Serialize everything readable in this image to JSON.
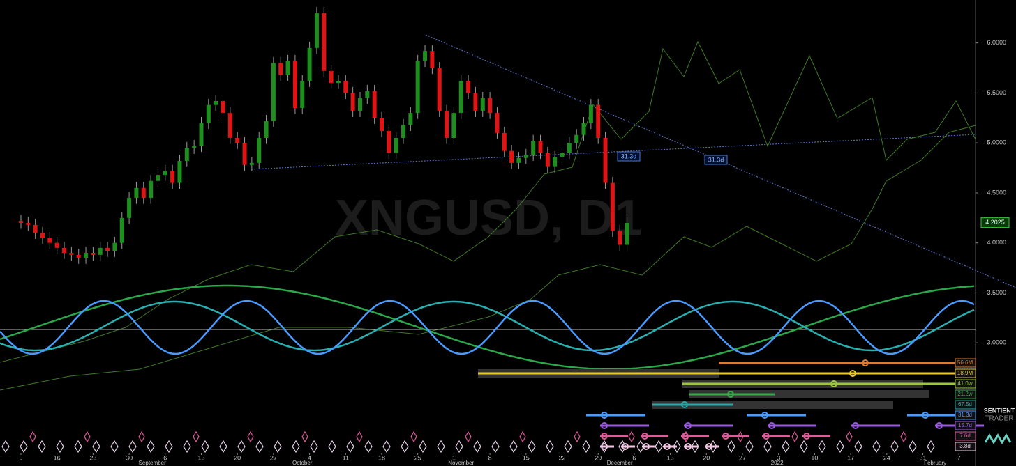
{
  "chart_data": {
    "type": "candlestick",
    "watermark": "XNGUSD, D1",
    "open": [
      4.22,
      4.2,
      4.18,
      4.1,
      4.05,
      4.0,
      3.95,
      3.9,
      3.88,
      3.85,
      3.9,
      3.88,
      3.95,
      3.92,
      4.0,
      4.25,
      4.45,
      4.55,
      4.45,
      4.62,
      4.68,
      4.72,
      4.6,
      4.82,
      4.95,
      4.97,
      5.2,
      5.38,
      5.42,
      5.3,
      5.05,
      5.0,
      4.78,
      4.8,
      5.05,
      5.22,
      5.8,
      5.68,
      5.82,
      5.35,
      5.62,
      5.95,
      6.3,
      5.72,
      5.6,
      5.62,
      5.5,
      5.32,
      5.45,
      5.52,
      5.25,
      5.12,
      4.9,
      5.05,
      5.18,
      5.3,
      5.82,
      5.92,
      5.75,
      5.32,
      5.05,
      5.3,
      5.62,
      5.5,
      5.32,
      5.45,
      5.3,
      5.1,
      4.92,
      4.8,
      4.85,
      4.88,
      5.02,
      4.9,
      4.76,
      4.86,
      4.9,
      5.0,
      5.08,
      5.2,
      5.38,
      5.05,
      4.6,
      4.12,
      3.98
    ],
    "high": [
      4.28,
      4.26,
      4.24,
      4.16,
      4.11,
      4.06,
      4.01,
      3.96,
      3.94,
      3.96,
      3.96,
      4.01,
      4.01,
      4.06,
      4.31,
      4.51,
      4.61,
      4.61,
      4.68,
      4.74,
      4.78,
      4.78,
      4.88,
      5.01,
      5.03,
      5.26,
      5.44,
      5.48,
      5.48,
      5.36,
      5.11,
      5.06,
      4.86,
      5.11,
      5.28,
      5.86,
      5.86,
      5.88,
      5.88,
      5.68,
      6.01,
      6.36,
      6.36,
      5.78,
      5.68,
      5.68,
      5.56,
      5.51,
      5.58,
      5.58,
      5.31,
      5.18,
      5.11,
      5.24,
      5.36,
      5.88,
      5.98,
      5.98,
      5.81,
      5.38,
      5.36,
      5.68,
      5.68,
      5.56,
      5.51,
      5.51,
      5.36,
      5.16,
      4.98,
      4.91,
      4.94,
      5.08,
      5.08,
      4.96,
      4.92,
      4.96,
      5.06,
      5.14,
      5.26,
      5.44,
      5.44,
      5.11,
      4.66,
      4.18,
      4.26
    ],
    "low": [
      4.14,
      4.12,
      4.04,
      3.99,
      3.94,
      3.89,
      3.84,
      3.82,
      3.79,
      3.79,
      3.82,
      3.82,
      3.86,
      3.86,
      3.94,
      4.19,
      4.39,
      4.39,
      4.39,
      4.56,
      4.62,
      4.54,
      4.54,
      4.76,
      4.89,
      4.91,
      5.14,
      5.32,
      5.24,
      4.99,
      4.94,
      4.72,
      4.72,
      4.74,
      4.99,
      5.16,
      5.62,
      5.62,
      5.29,
      5.29,
      5.56,
      5.89,
      5.66,
      5.54,
      5.54,
      5.44,
      5.26,
      5.26,
      5.39,
      5.19,
      5.06,
      4.84,
      4.84,
      4.99,
      5.12,
      5.24,
      5.76,
      5.69,
      5.26,
      4.99,
      4.99,
      5.24,
      5.44,
      5.26,
      5.26,
      5.24,
      5.04,
      4.86,
      4.74,
      4.74,
      4.79,
      4.82,
      4.84,
      4.7,
      4.7,
      4.8,
      4.84,
      4.94,
      5.02,
      5.14,
      4.99,
      4.54,
      4.06,
      3.92,
      3.92
    ],
    "close": [
      4.2,
      4.18,
      4.1,
      4.05,
      4.0,
      3.95,
      3.9,
      3.88,
      3.85,
      3.9,
      3.88,
      3.95,
      3.92,
      4.0,
      4.25,
      4.45,
      4.55,
      4.45,
      4.62,
      4.68,
      4.72,
      4.6,
      4.82,
      4.95,
      4.97,
      5.2,
      5.38,
      5.42,
      5.3,
      5.05,
      5.0,
      4.78,
      4.8,
      5.05,
      5.22,
      5.8,
      5.68,
      5.82,
      5.35,
      5.62,
      5.95,
      6.3,
      5.72,
      5.6,
      5.62,
      5.5,
      5.32,
      5.45,
      5.52,
      5.25,
      5.12,
      4.9,
      5.05,
      5.18,
      5.3,
      5.82,
      5.92,
      5.75,
      5.32,
      5.05,
      5.3,
      5.62,
      5.5,
      5.32,
      5.45,
      5.3,
      5.1,
      4.92,
      4.8,
      4.85,
      4.88,
      5.02,
      4.9,
      4.76,
      4.86,
      4.9,
      5.0,
      5.08,
      5.2,
      5.38,
      5.05,
      4.6,
      4.12,
      3.98,
      4.2
    ],
    "up_color": "#1e8f1e",
    "down_color": "#e01414",
    "last_price": 4.2025,
    "xlim": [
      -2.9,
      132.3
    ],
    "ylim": [
      1.9,
      6.43
    ],
    "yticks": [
      {
        "value": 6,
        "label": "6.0000"
      },
      {
        "value": 5.5,
        "label": "5.5000"
      },
      {
        "value": 5,
        "label": "5.0000"
      },
      {
        "value": 4.5,
        "label": "4.5000"
      },
      {
        "value": 4,
        "label": "4.0000"
      },
      {
        "value": 3.5,
        "label": "3.5000"
      },
      {
        "value": 3,
        "label": "3.0000"
      }
    ],
    "xticks": [
      {
        "value": 0,
        "label": "9"
      },
      {
        "value": 5,
        "label": "16"
      },
      {
        "value": 10,
        "label": "23"
      },
      {
        "value": 15,
        "label": "30"
      },
      {
        "value": 20,
        "label": "6"
      },
      {
        "value": 25,
        "label": "13"
      },
      {
        "value": 30,
        "label": "20"
      },
      {
        "value": 35,
        "label": "27"
      },
      {
        "value": 40,
        "label": "4"
      },
      {
        "value": 45,
        "label": "11"
      },
      {
        "value": 50,
        "label": "18"
      },
      {
        "value": 55,
        "label": "25"
      },
      {
        "value": 60,
        "label": "1"
      },
      {
        "value": 65,
        "label": "8"
      },
      {
        "value": 70,
        "label": "15"
      },
      {
        "value": 75,
        "label": "22"
      },
      {
        "value": 80,
        "label": "29"
      },
      {
        "value": 85,
        "label": "6"
      },
      {
        "value": 90,
        "label": "13"
      },
      {
        "value": 95,
        "label": "20"
      },
      {
        "value": 100,
        "label": "27"
      },
      {
        "value": 105,
        "label": "3"
      },
      {
        "value": 110,
        "label": "10"
      },
      {
        "value": 115,
        "label": "17"
      },
      {
        "value": 120,
        "label": "24"
      },
      {
        "value": 125,
        "label": "31"
      },
      {
        "value": 130,
        "label": "7"
      }
    ],
    "month_ticks": [
      {
        "value": 18.2,
        "label": "September"
      },
      {
        "value": 39,
        "label": "October"
      },
      {
        "value": 61,
        "label": "November"
      },
      {
        "value": 83,
        "label": "December"
      },
      {
        "value": 104.8,
        "label": "2022"
      },
      {
        "value": 126.7,
        "label": "February"
      }
    ],
    "annotations": [
      "31.3d",
      "31.3d"
    ],
    "cycles": [
      {
        "label": "56.6M",
        "color": "#e07a30"
      },
      {
        "label": "18.9M",
        "color": "#e8c830"
      },
      {
        "label": "41.0w",
        "color": "#9ac83a"
      },
      {
        "label": "21.2w",
        "color": "#3aa84a"
      },
      {
        "label": "67.5d",
        "color": "#2aa8a8"
      },
      {
        "label": "31.3d",
        "color": "#4a9aff"
      },
      {
        "label": "15.7d",
        "color": "#9a5ae0"
      },
      {
        "label": "7.6d",
        "color": "#e05a9a"
      },
      {
        "label": "3.8d",
        "color": "#f0c8e0"
      }
    ],
    "logo": [
      "SENTIENT",
      "TRADER"
    ]
  }
}
